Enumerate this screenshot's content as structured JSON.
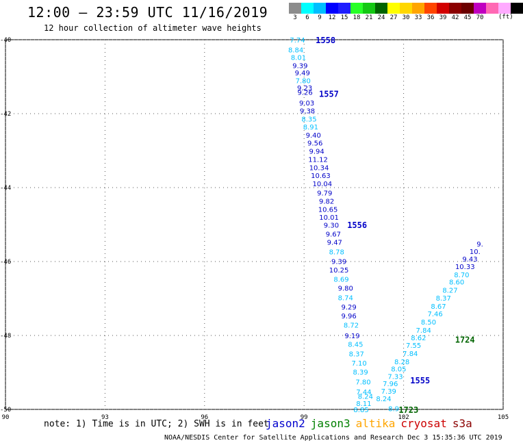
{
  "header": {
    "title": "12:00 — 23:59 UTC 11/16/2019",
    "subtitle": "12 hour collection of altimeter wave heights"
  },
  "legend": {
    "colors": [
      "#8c8c8c",
      "#00ffff",
      "#00bfff",
      "#0000ff",
      "#1e1eff",
      "#28ff28",
      "#14c814",
      "#006400",
      "#ffff00",
      "#ffd700",
      "#ffa500",
      "#ff4500",
      "#d20000",
      "#8b0000",
      "#6b0000",
      "#c000c0",
      "#ff69b4",
      "#ffaaff",
      "#000000"
    ],
    "labels": [
      "3",
      "6",
      "9",
      "12",
      "15",
      "18",
      "21",
      "24",
      "27",
      "30",
      "33",
      "36",
      "39",
      "42",
      "45",
      "70"
    ],
    "unit": "(ft)"
  },
  "map": {
    "lat_ticks": [
      "-40",
      "-42",
      "-44",
      "-46",
      "-48",
      "-50"
    ],
    "lon_ticks": [
      "90",
      "93",
      "96",
      "99",
      "102",
      "105"
    ]
  },
  "tracks": [
    {
      "satellite": "jason2",
      "color": "#0000c8",
      "pass_labels": [
        {
          "text": "1558",
          "lat": -40.0,
          "lon": 99.35
        },
        {
          "text": "1557",
          "lat": -41.45,
          "lon": 99.45
        },
        {
          "text": "1556",
          "lat": -45.0,
          "lon": 100.3
        },
        {
          "text": "1555",
          "lat": -49.2,
          "lon": 102.2
        }
      ],
      "points": [
        {
          "lat": -40.0,
          "lon": 98.8,
          "v": "7.74",
          "c": "#00bfff"
        },
        {
          "lat": -40.27,
          "lon": 98.75,
          "v": "8.84",
          "c": "#00bfff"
        },
        {
          "lat": -40.47,
          "lon": 98.83,
          "v": "8.01",
          "c": "#00bfff"
        },
        {
          "lat": -40.69,
          "lon": 98.88,
          "v": "9.39",
          "c": "#0000c8"
        },
        {
          "lat": -40.89,
          "lon": 98.95,
          "v": "9.49",
          "c": "#0000c8"
        },
        {
          "lat": -41.1,
          "lon": 98.97,
          "v": "7.80",
          "c": "#00bfff"
        },
        {
          "lat": -41.3,
          "lon": 99.02,
          "v": "9.23",
          "c": "#0000c8"
        },
        {
          "lat": -41.42,
          "lon": 99.03,
          "v": "9.26",
          "c": "#0000c8"
        },
        {
          "lat": -41.7,
          "lon": 99.08,
          "v": "9.03",
          "c": "#0000c8"
        },
        {
          "lat": -41.92,
          "lon": 99.1,
          "v": "9.38",
          "c": "#0000c8"
        },
        {
          "lat": -42.14,
          "lon": 99.15,
          "v": "8.35",
          "c": "#00bfff"
        },
        {
          "lat": -42.35,
          "lon": 99.2,
          "v": "8.91",
          "c": "#00bfff"
        },
        {
          "lat": -42.57,
          "lon": 99.28,
          "v": "9.40",
          "c": "#0000c8"
        },
        {
          "lat": -42.79,
          "lon": 99.33,
          "v": "9.56",
          "c": "#0000c8"
        },
        {
          "lat": -43.01,
          "lon": 99.38,
          "v": "9.94",
          "c": "#0000c8"
        },
        {
          "lat": -43.23,
          "lon": 99.42,
          "v": "11.12",
          "c": "#0000c8"
        },
        {
          "lat": -43.45,
          "lon": 99.45,
          "v": "10.34",
          "c": "#0000c8"
        },
        {
          "lat": -43.67,
          "lon": 99.5,
          "v": "10.63",
          "c": "#0000c8"
        },
        {
          "lat": -43.89,
          "lon": 99.55,
          "v": "10.04",
          "c": "#0000c8"
        },
        {
          "lat": -44.14,
          "lon": 99.62,
          "v": "9.79",
          "c": "#0000c8"
        },
        {
          "lat": -44.36,
          "lon": 99.68,
          "v": "9.82",
          "c": "#0000c8"
        },
        {
          "lat": -44.58,
          "lon": 99.72,
          "v": "10.65",
          "c": "#0000c8"
        },
        {
          "lat": -44.8,
          "lon": 99.75,
          "v": "10.01",
          "c": "#0000c8"
        },
        {
          "lat": -45.01,
          "lon": 99.82,
          "v": "9.30",
          "c": "#0000c8"
        },
        {
          "lat": -45.25,
          "lon": 99.88,
          "v": "9.67",
          "c": "#0000c8"
        },
        {
          "lat": -45.47,
          "lon": 99.92,
          "v": "9.47",
          "c": "#0000c8"
        },
        {
          "lat": -45.73,
          "lon": 99.98,
          "v": "8.78",
          "c": "#00bfff"
        },
        {
          "lat": -45.99,
          "lon": 100.05,
          "v": "9.39",
          "c": "#0000c8"
        },
        {
          "lat": -46.22,
          "lon": 100.05,
          "v": "10.25",
          "c": "#0000c8"
        },
        {
          "lat": -46.47,
          "lon": 100.12,
          "v": "8.69",
          "c": "#00bfff"
        },
        {
          "lat": -46.71,
          "lon": 100.25,
          "v": "9.80",
          "c": "#0000c8"
        },
        {
          "lat": -46.97,
          "lon": 100.25,
          "v": "8.74",
          "c": "#00bfff"
        },
        {
          "lat": -47.22,
          "lon": 100.35,
          "v": "9.29",
          "c": "#0000c8"
        },
        {
          "lat": -47.46,
          "lon": 100.35,
          "v": "9.96",
          "c": "#0000c8"
        },
        {
          "lat": -47.71,
          "lon": 100.42,
          "v": "8.72",
          "c": "#00bfff"
        },
        {
          "lat": -48.0,
          "lon": 100.45,
          "v": "9.19",
          "c": "#0000c8"
        },
        {
          "lat": -48.23,
          "lon": 100.55,
          "v": "8.45",
          "c": "#00bfff"
        },
        {
          "lat": -48.49,
          "lon": 100.58,
          "v": "8.37",
          "c": "#00bfff"
        },
        {
          "lat": -48.74,
          "lon": 100.66,
          "v": "7.10",
          "c": "#00bfff"
        },
        {
          "lat": -48.98,
          "lon": 100.7,
          "v": "8.39",
          "c": "#00bfff"
        },
        {
          "lat": -49.25,
          "lon": 100.78,
          "v": "7.80",
          "c": "#00bfff"
        },
        {
          "lat": -49.52,
          "lon": 100.8,
          "v": "7.44",
          "c": "#00bfff"
        },
        {
          "lat": -49.64,
          "lon": 100.85,
          "v": "8.24",
          "c": "#00bfff"
        },
        {
          "lat": -49.83,
          "lon": 100.8,
          "v": "8.11",
          "c": "#00bfff"
        },
        {
          "lat": -50.0,
          "lon": 100.72,
          "v": "8.85",
          "c": "#00bfff"
        }
      ]
    },
    {
      "satellite": "jason3",
      "color": "#006400",
      "pass_labels": [
        {
          "text": "1724",
          "lat": -48.1,
          "lon": 103.55
        },
        {
          "text": "1723",
          "lat": -50.0,
          "lon": 101.85
        }
      ],
      "points": [
        {
          "lat": -49.97,
          "lon": 101.7,
          "v": "8.9",
          "c": "#00bfff"
        },
        {
          "lat": -49.7,
          "lon": 101.4,
          "v": "8.24",
          "c": "#00bfff"
        },
        {
          "lat": -49.5,
          "lon": 101.55,
          "v": "7.39",
          "c": "#00bfff"
        },
        {
          "lat": -49.3,
          "lon": 101.6,
          "v": "7.96",
          "c": "#00bfff"
        },
        {
          "lat": -49.1,
          "lon": 101.75,
          "v": "7.33",
          "c": "#00bfff"
        },
        {
          "lat": -48.9,
          "lon": 101.85,
          "v": "8.05",
          "c": "#00bfff"
        },
        {
          "lat": -48.7,
          "lon": 101.95,
          "v": "8.28",
          "c": "#00bfff"
        },
        {
          "lat": -48.48,
          "lon": 102.2,
          "v": "7.84",
          "c": "#00bfff"
        },
        {
          "lat": -48.26,
          "lon": 102.3,
          "v": "7.55",
          "c": "#00bfff"
        },
        {
          "lat": -48.06,
          "lon": 102.45,
          "v": "8.62",
          "c": "#00bfff"
        },
        {
          "lat": -47.85,
          "lon": 102.6,
          "v": "7.84",
          "c": "#00bfff"
        },
        {
          "lat": -47.63,
          "lon": 102.75,
          "v": "8.50",
          "c": "#00bfff"
        },
        {
          "lat": -47.41,
          "lon": 102.95,
          "v": "7.46",
          "c": "#00bfff"
        },
        {
          "lat": -47.2,
          "lon": 103.05,
          "v": "8.67",
          "c": "#00bfff"
        },
        {
          "lat": -46.98,
          "lon": 103.2,
          "v": "8.37",
          "c": "#00bfff"
        },
        {
          "lat": -46.77,
          "lon": 103.4,
          "v": "8.27",
          "c": "#00bfff"
        },
        {
          "lat": -46.55,
          "lon": 103.6,
          "v": "8.60",
          "c": "#00bfff"
        },
        {
          "lat": -46.35,
          "lon": 103.75,
          "v": "8.70",
          "c": "#00bfff"
        },
        {
          "lat": -46.13,
          "lon": 103.85,
          "v": "10.33",
          "c": "#0000c8"
        },
        {
          "lat": -45.93,
          "lon": 104.0,
          "v": "9.43",
          "c": "#0000c8"
        },
        {
          "lat": -45.72,
          "lon": 104.15,
          "v": "10.",
          "c": "#0000c8"
        },
        {
          "lat": -45.52,
          "lon": 104.3,
          "v": "9.",
          "c": "#0000c8"
        }
      ]
    }
  ],
  "note": "note: 1) Time is in UTC; 2) SWH is in feet",
  "satellite_labels": [
    {
      "name": "jason2",
      "color": "#0000cd"
    },
    {
      "name": "jason3",
      "color": "#008000"
    },
    {
      "name": "altika",
      "color": "#ffa500"
    },
    {
      "name": "cryosat",
      "color": "#cc0000"
    },
    {
      "name": "s3a",
      "color": "#8b0000"
    }
  ],
  "footer": "NOAA/NESDIS Center for Satellite Applications and Research     Dec  3 15:35:36 UTC 2019"
}
